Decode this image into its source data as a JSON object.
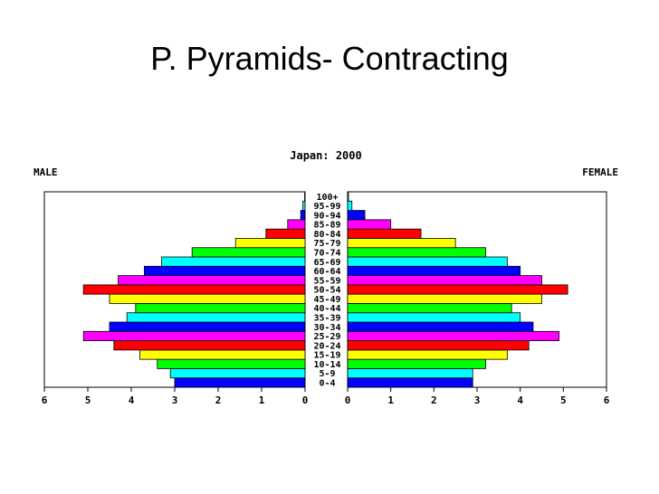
{
  "slide": {
    "title": "P. Pyramids- Contracting"
  },
  "chart_data": {
    "type": "bar",
    "title": "Japan: 2000",
    "left_label": "MALE",
    "right_label": "FEMALE",
    "xlim": [
      0,
      6
    ],
    "x_ticks": [
      "0",
      "1",
      "2",
      "3",
      "4",
      "5",
      "6"
    ],
    "categories": [
      "0-4",
      "5-9",
      "10-14",
      "15-19",
      "20-24",
      "25-29",
      "30-34",
      "35-39",
      "40-44",
      "45-49",
      "50-54",
      "55-59",
      "60-64",
      "65-69",
      "70-74",
      "75-79",
      "80-84",
      "85-89",
      "90-94",
      "95-99",
      "100+"
    ],
    "series": [
      {
        "name": "MALE",
        "values": [
          3.0,
          3.1,
          3.4,
          3.8,
          4.4,
          5.1,
          4.5,
          4.1,
          3.9,
          4.5,
          5.1,
          4.3,
          3.7,
          3.3,
          2.6,
          1.6,
          0.9,
          0.4,
          0.1,
          0.05,
          0.01
        ]
      },
      {
        "name": "FEMALE",
        "values": [
          2.9,
          2.9,
          3.2,
          3.7,
          4.2,
          4.9,
          4.3,
          4.0,
          3.8,
          4.5,
          5.1,
          4.5,
          4.0,
          3.7,
          3.2,
          2.5,
          1.7,
          1.0,
          0.4,
          0.1,
          0.02
        ]
      }
    ],
    "bar_colors": [
      "#0000ff",
      "#00ffff",
      "#00ff00",
      "#ffff00",
      "#ff0000",
      "#ff00ff"
    ]
  }
}
